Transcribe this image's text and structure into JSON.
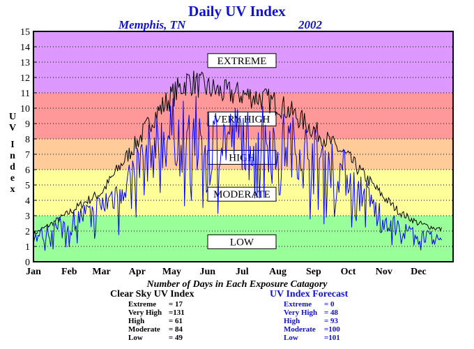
{
  "title": "Daily UV Index",
  "location": "Memphis, TN",
  "year": "2002",
  "ylabel_letters": [
    "U",
    "V",
    "I",
    "n",
    "d",
    "e",
    "x"
  ],
  "summary_title": "Number of Days in Each Exposure Catagory",
  "clear_sky": {
    "title": "Clear Sky UV Index",
    "rows": [
      {
        "label": "Extreme",
        "value": "=  17"
      },
      {
        "label": "Very High",
        "value": "=131"
      },
      {
        "label": "High",
        "value": "=  61"
      },
      {
        "label": "Moderate",
        "value": "=  84"
      },
      {
        "label": "Low",
        "value": "=  49"
      }
    ]
  },
  "forecast": {
    "title": "UV Index Forecast",
    "rows": [
      {
        "label": "Extreme",
        "value": "=    0"
      },
      {
        "label": "Very High",
        "value": "=  48"
      },
      {
        "label": "High",
        "value": "=  93"
      },
      {
        "label": "Moderate",
        "value": "=100"
      },
      {
        "label": "Low",
        "value": "=101"
      }
    ]
  },
  "colors": {
    "title": "#1010d8",
    "forecast_line": "#0000ff",
    "clear_sky_line": "#000000",
    "band_low": "#99ff99",
    "band_moderate": "#ffff99",
    "band_high": "#ffcc99",
    "band_very_high": "#ff9999",
    "band_extreme": "#dd99ff"
  },
  "chart_data": {
    "type": "line",
    "x_tick_labels": [
      "Jan",
      "Feb",
      "Mar",
      "Apr",
      "May",
      "Jun",
      "Jul",
      "Aug",
      "Sep",
      "Oct",
      "Nov",
      "Dec"
    ],
    "y_ticks": [
      0,
      1,
      2,
      3,
      4,
      5,
      6,
      7,
      8,
      9,
      10,
      11,
      12,
      13,
      14,
      15
    ],
    "ylim": [
      0,
      15
    ],
    "xlim_days": [
      1,
      365
    ],
    "grid": "horizontal dotted",
    "categories": [
      {
        "label": "LOW",
        "range": [
          0,
          3
        ]
      },
      {
        "label": "MODERATE",
        "range": [
          3,
          6
        ]
      },
      {
        "label": "HIGH",
        "range": [
          6,
          8
        ]
      },
      {
        "label": "VERY HIGH",
        "range": [
          8,
          11
        ]
      },
      {
        "label": "EXTREME",
        "range": [
          11,
          15
        ]
      }
    ],
    "series": [
      {
        "name": "Clear Sky UV Index",
        "points": [
          [
            1,
            1.8
          ],
          [
            15,
            2.4
          ],
          [
            32,
            3.2
          ],
          [
            46,
            3.9
          ],
          [
            60,
            4.5
          ],
          [
            74,
            6.0
          ],
          [
            91,
            7.8
          ],
          [
            105,
            9.4
          ],
          [
            121,
            10.8
          ],
          [
            135,
            11.8
          ],
          [
            152,
            11.3
          ],
          [
            166,
            11.0
          ],
          [
            182,
            10.9
          ],
          [
            196,
            10.7
          ],
          [
            213,
            10.3
          ],
          [
            227,
            9.6
          ],
          [
            244,
            8.6
          ],
          [
            258,
            7.8
          ],
          [
            274,
            6.8
          ],
          [
            288,
            5.6
          ],
          [
            305,
            4.2
          ],
          [
            319,
            3.2
          ],
          [
            335,
            2.5
          ],
          [
            349,
            2.2
          ],
          [
            355,
            2.1
          ]
        ]
      },
      {
        "name": "UV Index Forecast",
        "points": [
          [
            1,
            1.6
          ],
          [
            15,
            2.0
          ],
          [
            32,
            2.6
          ],
          [
            46,
            3.1
          ],
          [
            60,
            3.6
          ],
          [
            74,
            4.6
          ],
          [
            91,
            6.2
          ],
          [
            105,
            7.4
          ],
          [
            121,
            8.4
          ],
          [
            135,
            8.6
          ],
          [
            152,
            8.3
          ],
          [
            166,
            8.0
          ],
          [
            182,
            8.2
          ],
          [
            196,
            8.1
          ],
          [
            213,
            7.9
          ],
          [
            227,
            7.5
          ],
          [
            244,
            7.0
          ],
          [
            258,
            6.5
          ],
          [
            274,
            5.6
          ],
          [
            288,
            4.4
          ],
          [
            305,
            2.8
          ],
          [
            319,
            2.1
          ],
          [
            335,
            1.8
          ],
          [
            349,
            1.5
          ],
          [
            355,
            1.4
          ]
        ]
      }
    ]
  }
}
